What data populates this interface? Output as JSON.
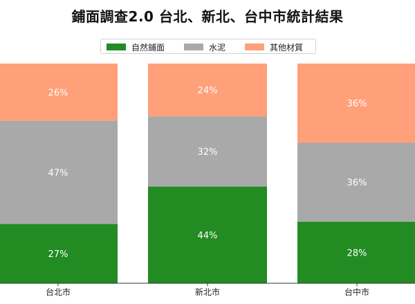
{
  "title": "鋪面調查2.0  台北、新北、台中市統計結果",
  "legend": [
    {
      "label": "自然鋪面",
      "color": "#228b22"
    },
    {
      "label": "水泥",
      "color": "#a9a9a9"
    },
    {
      "label": "其他材質",
      "color": "#ffa07a"
    }
  ],
  "chart_data": {
    "type": "bar",
    "stacked": true,
    "normalized": true,
    "categories": [
      "台北市",
      "新北市",
      "台中市"
    ],
    "series": [
      {
        "name": "自然鋪面",
        "color": "#228b22",
        "values": [
          27,
          44,
          28
        ],
        "labels": [
          "27%",
          "44%",
          "28%"
        ]
      },
      {
        "name": "水泥",
        "color": "#a9a9a9",
        "values": [
          47,
          32,
          36
        ],
        "labels": [
          "47%",
          "32%",
          "36%"
        ]
      },
      {
        "name": "其他材質",
        "color": "#ffa07a",
        "values": [
          26,
          24,
          36
        ],
        "labels": [
          "26%",
          "24%",
          "36%"
        ]
      }
    ],
    "ylim": [
      0,
      100
    ],
    "grid": false,
    "legend_position": "top-center"
  }
}
